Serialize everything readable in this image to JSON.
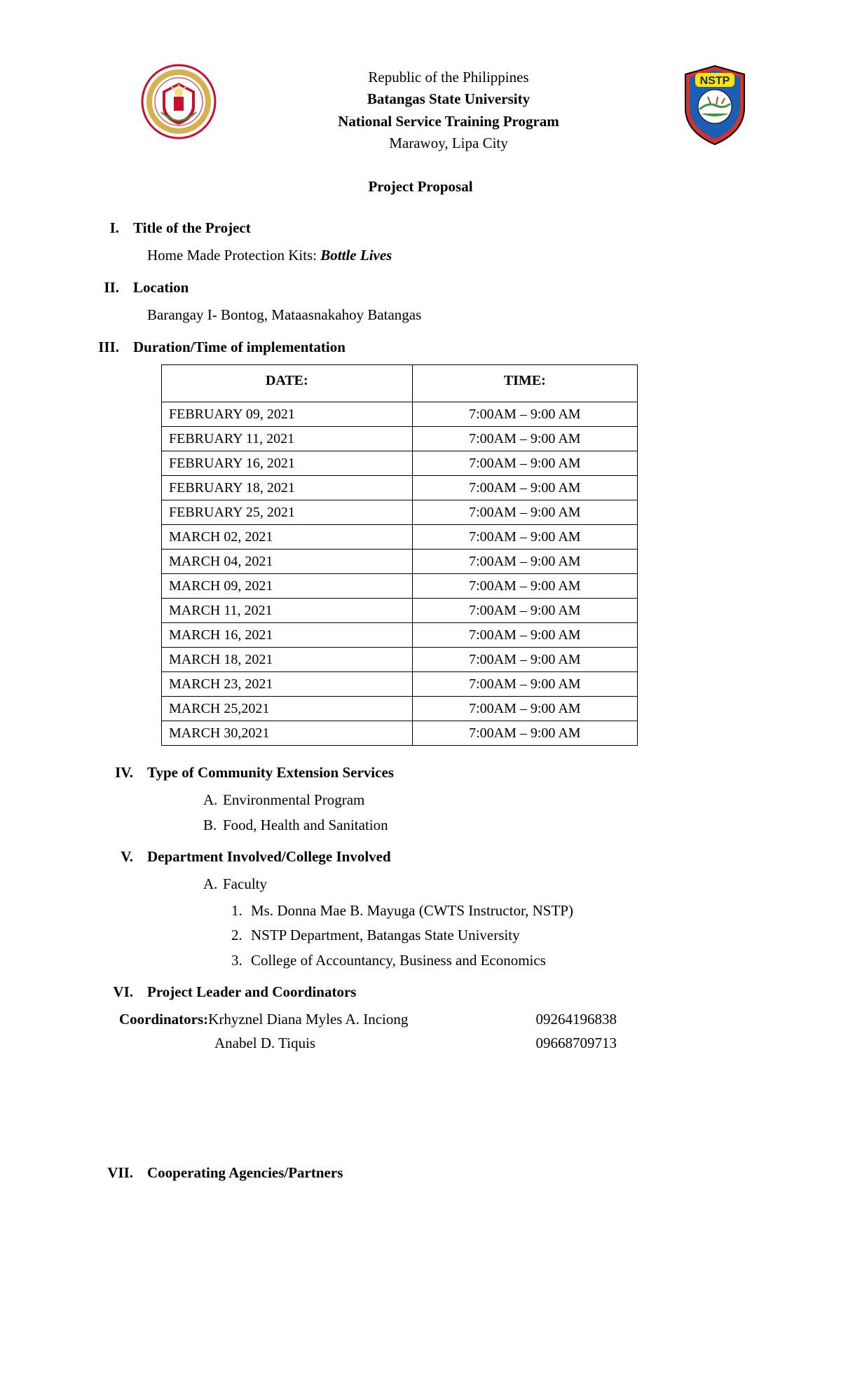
{
  "header": {
    "line1": "Republic of the Philippines",
    "line2": "Batangas State University",
    "line3": "National Service Training Program",
    "line4": "Marawoy, Lipa City"
  },
  "logos": {
    "left": {
      "outer_text": "BATANGAS STATE UNIVERSITY",
      "ring_color": "#c8102e",
      "inner_shield_fill": "#ffffff",
      "inner_accent": "#c8102e",
      "gold": "#d6b24c"
    },
    "right": {
      "label": "NSTP",
      "label_color": "#ffe600",
      "blue": "#1a5fb4",
      "red": "#d6322a",
      "green": "#3a9a3a",
      "white": "#ffffff",
      "outline": "#000000"
    }
  },
  "doc_title": "Project Proposal",
  "sections": {
    "i": {
      "roman": "I.",
      "title": "Title of the Project",
      "body_prefix": "Home Made Protection Kits: ",
      "body_emph": "Bottle Lives"
    },
    "ii": {
      "roman": "II.",
      "title": "Location",
      "body": "Barangay I- Bontog, Mataasnakahoy Batangas"
    },
    "iii": {
      "roman": "III.",
      "title": "Duration/Time of implementation"
    },
    "iv": {
      "roman": "IV.",
      "title": "Type of Community Extension Services",
      "items": [
        "Environmental Program",
        "Food, Health and Sanitation"
      ]
    },
    "v": {
      "roman": "V.",
      "title": "Department Involved/College Involved",
      "faculty_label": "Faculty",
      "faculty_items": [
        "Ms. Donna Mae B. Mayuga (CWTS Instructor, NSTP)",
        "NSTP Department, Batangas State University",
        "College of Accountancy, Business and Economics"
      ]
    },
    "vi": {
      "roman": "VI.",
      "title": "Project Leader and Coordinators",
      "coord_label": "Coordinators: ",
      "coordinators": [
        {
          "name": "Krhyznel Diana Myles A. Inciong",
          "phone": "09264196838"
        },
        {
          "name": "Anabel D. Tiquis",
          "phone": "09668709713"
        }
      ]
    },
    "vii": {
      "roman": "VII.",
      "title": "Cooperating Agencies/Partners"
    }
  },
  "schedule": {
    "col_date": "DATE:",
    "col_time": "TIME:",
    "rows": [
      {
        "date": "FEBRUARY 09, 2021",
        "time": "7:00AM – 9:00 AM"
      },
      {
        "date": "FEBRUARY 11, 2021",
        "time": "7:00AM – 9:00 AM"
      },
      {
        "date": "FEBRUARY 16, 2021",
        "time": "7:00AM – 9:00 AM"
      },
      {
        "date": "FEBRUARY 18, 2021",
        "time": "7:00AM – 9:00 AM"
      },
      {
        "date": "FEBRUARY  25, 2021",
        "time": "7:00AM – 9:00 AM"
      },
      {
        "date": "MARCH 02, 2021",
        "time": "7:00AM – 9:00 AM"
      },
      {
        "date": "MARCH 04, 2021",
        "time": "7:00AM – 9:00 AM"
      },
      {
        "date": "MARCH 09, 2021",
        "time": "7:00AM – 9:00 AM"
      },
      {
        "date": "MARCH 11, 2021",
        "time": "7:00AM – 9:00 AM"
      },
      {
        "date": "MARCH 16, 2021",
        "time": "7:00AM – 9:00 AM"
      },
      {
        "date": "MARCH 18, 2021",
        "time": "7:00AM – 9:00 AM"
      },
      {
        "date": "MARCH 23, 2021",
        "time": "7:00AM – 9:00 AM"
      },
      {
        "date": "MARCH 25,2021",
        "time": "7:00AM – 9:00 AM"
      },
      {
        "date": "MARCH 30,2021",
        "time": "7:00AM – 9:00 AM"
      }
    ]
  }
}
